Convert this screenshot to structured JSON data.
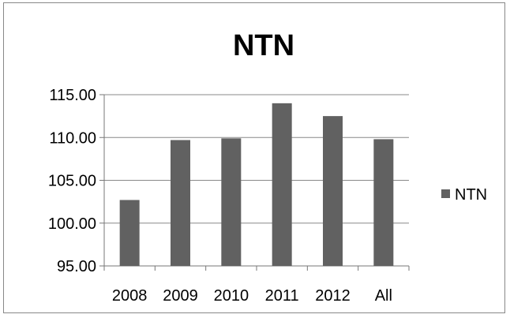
{
  "chart_data": {
    "type": "bar",
    "title": "NTN",
    "xlabel": "",
    "ylabel": "",
    "categories": [
      "2008",
      "2009",
      "2010",
      "2011",
      "2012",
      "All"
    ],
    "series": [
      {
        "name": "NTN",
        "values": [
          102.7,
          109.7,
          109.9,
          114.0,
          112.5,
          109.8
        ],
        "color": "#616161"
      }
    ],
    "ylim": [
      95,
      115
    ],
    "yticks": [
      95,
      100,
      105,
      110,
      115
    ],
    "ytick_labels": [
      "95.00",
      "100.00",
      "105.00",
      "110.00",
      "115.00"
    ],
    "grid": true,
    "legend_position": "right"
  }
}
